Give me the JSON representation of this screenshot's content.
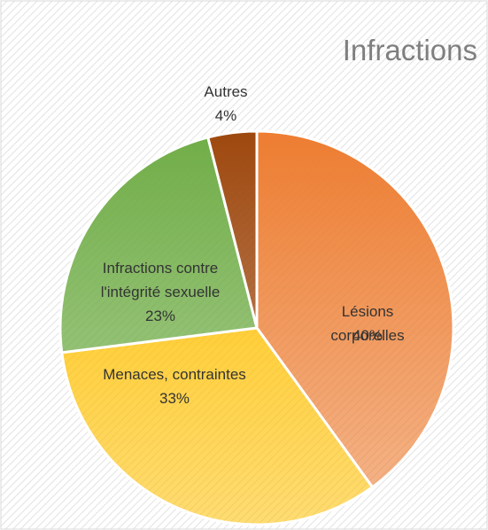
{
  "chart_data": {
    "type": "pie",
    "title": "Infractions",
    "categories": [
      "Lésions corporelles",
      "Menaces, contraintes",
      "Infractions contre l'intégrité sexuelle",
      "Autres"
    ],
    "values": [
      40,
      33,
      23,
      4
    ],
    "value_labels": [
      "40%",
      "33%",
      "23%",
      "4%"
    ],
    "colors": [
      "#ed7d31",
      "#ffc000",
      "#70ad47",
      "#9e480e"
    ]
  }
}
